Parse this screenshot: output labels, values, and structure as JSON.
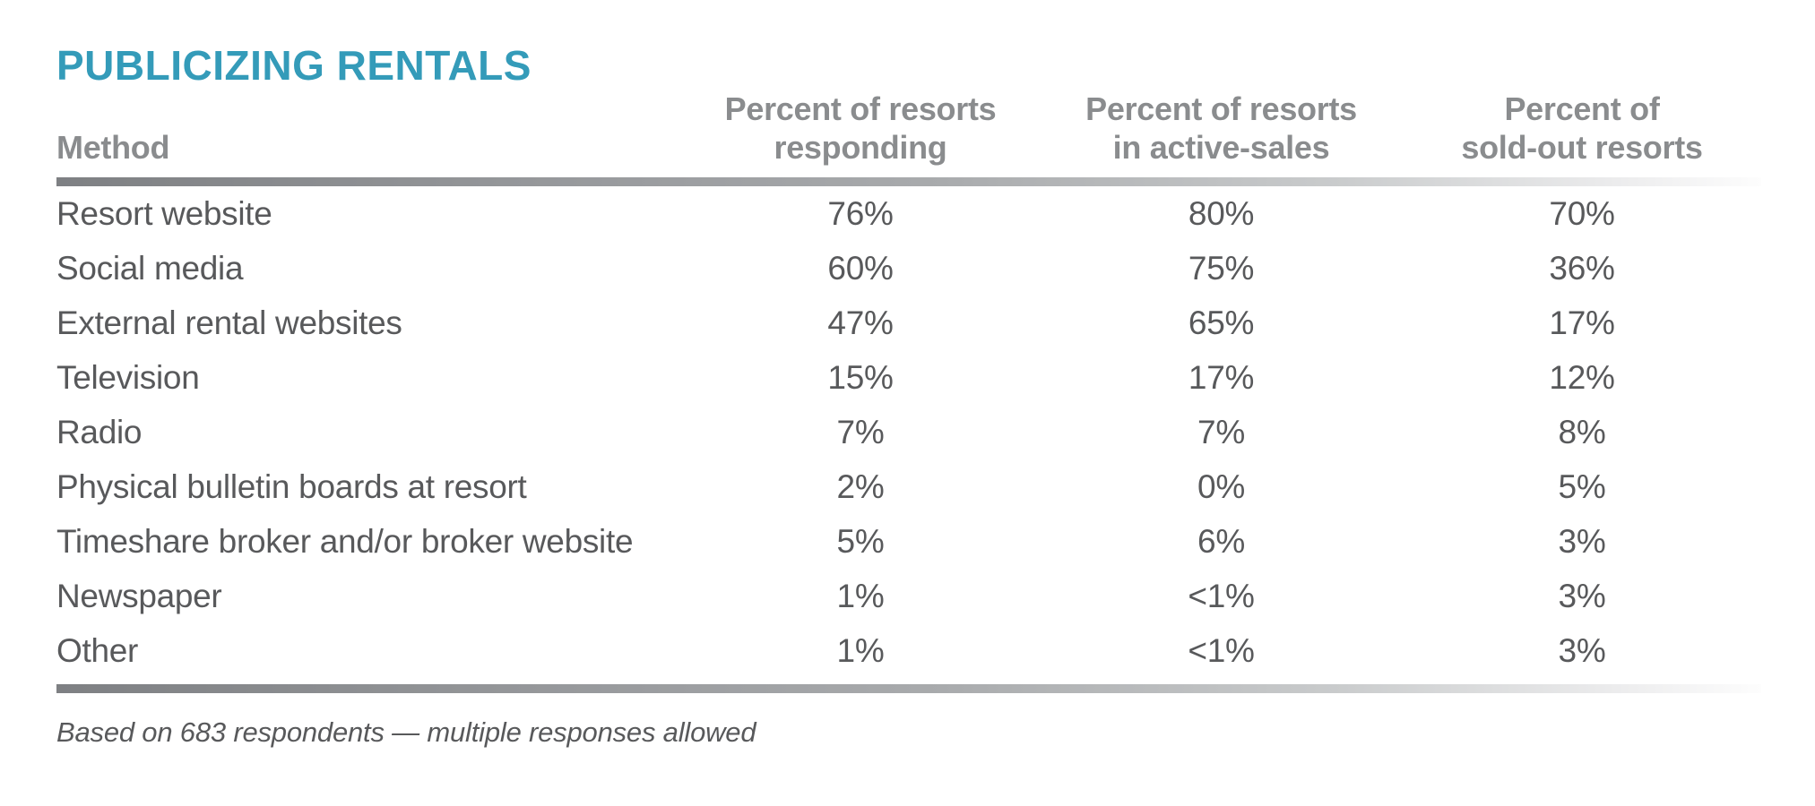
{
  "colors": {
    "title": "#349BB9",
    "header": "#8A8C8E",
    "body": "#58595B",
    "rule-dark": "#7E8083",
    "rule-light": "#FDFDFD"
  },
  "table": {
    "title": "PUBLICIZING RENTALS",
    "method_header": "Method",
    "column_headers": [
      {
        "line1": "Percent of resorts",
        "line2": "responding"
      },
      {
        "line1": "Percent of resorts",
        "line2": "in active-sales"
      },
      {
        "line1": "Percent of",
        "line2": "sold-out resorts"
      }
    ],
    "rows": [
      {
        "method": "Resort website",
        "responding": "76%",
        "active_sales": "80%",
        "sold_out": "70%"
      },
      {
        "method": "Social media",
        "responding": "60%",
        "active_sales": "75%",
        "sold_out": "36%"
      },
      {
        "method": "External rental websites",
        "responding": "47%",
        "active_sales": "65%",
        "sold_out": "17%"
      },
      {
        "method": "Television",
        "responding": "15%",
        "active_sales": "17%",
        "sold_out": "12%"
      },
      {
        "method": "Radio",
        "responding": "7%",
        "active_sales": "7%",
        "sold_out": "8%"
      },
      {
        "method": "Physical bulletin boards at resort",
        "responding": "2%",
        "active_sales": "0%",
        "sold_out": "5%"
      },
      {
        "method": "Timeshare broker and/or broker website",
        "responding": "5%",
        "active_sales": "6%",
        "sold_out": "3%"
      },
      {
        "method": "Newspaper",
        "responding": "1%",
        "active_sales": "<1%",
        "sold_out": "3%"
      },
      {
        "method": "Other",
        "responding": "1%",
        "active_sales": "<1%",
        "sold_out": "3%"
      }
    ],
    "footnote": "Based on 683 respondents — multiple responses allowed"
  },
  "chart_data": {
    "type": "table",
    "title": "PUBLICIZING RENTALS",
    "columns": [
      "Method",
      "Percent of resorts responding",
      "Percent of resorts in active-sales",
      "Percent of sold-out resorts"
    ],
    "rows": [
      [
        "Resort website",
        "76%",
        "80%",
        "70%"
      ],
      [
        "Social media",
        "60%",
        "75%",
        "36%"
      ],
      [
        "External rental websites",
        "47%",
        "65%",
        "17%"
      ],
      [
        "Television",
        "15%",
        "17%",
        "12%"
      ],
      [
        "Radio",
        "7%",
        "7%",
        "8%"
      ],
      [
        "Physical bulletin boards at resort",
        "2%",
        "0%",
        "5%"
      ],
      [
        "Timeshare broker and/or broker website",
        "5%",
        "6%",
        "3%"
      ],
      [
        "Newspaper",
        "1%",
        "<1%",
        "3%"
      ],
      [
        "Other",
        "1%",
        "<1%",
        "3%"
      ]
    ],
    "footnote": "Based on 683 respondents — multiple responses allowed"
  }
}
